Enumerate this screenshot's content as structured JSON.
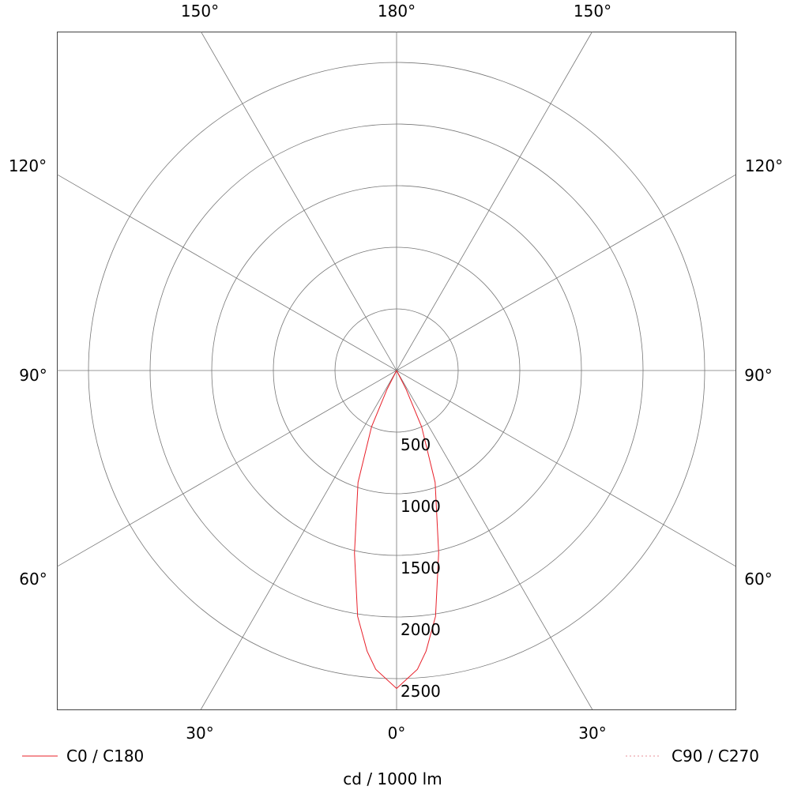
{
  "chart_data": {
    "type": "polar",
    "unit_label": "cd / 1000 lm",
    "radial_ticks": [
      500,
      1000,
      1500,
      2000,
      2500
    ],
    "radial_max": 2500,
    "angle_labels": {
      "top": [
        "150°",
        "180°",
        "150°"
      ],
      "left": [
        "120°",
        "90°",
        "60°"
      ],
      "right": [
        "120°",
        "90°",
        "60°"
      ],
      "bottom": [
        "30°",
        "0°",
        "30°"
      ]
    },
    "angle_grid_step_deg": 30,
    "grid": true,
    "legend": [
      {
        "name": "C0 / C180",
        "style": "solid",
        "color": "#e8202a"
      },
      {
        "name": "C90 / C270",
        "style": "dotted",
        "color": "#e8909a"
      }
    ],
    "series": [
      {
        "name": "C0 / C180",
        "color": "#e8202a",
        "angles_deg": [
          0,
          4,
          6,
          9,
          13,
          19,
          24,
          27,
          30
        ],
        "values": [
          2580,
          2430,
          2290,
          2020,
          1520,
          960,
          500,
          170,
          0
        ]
      }
    ]
  }
}
